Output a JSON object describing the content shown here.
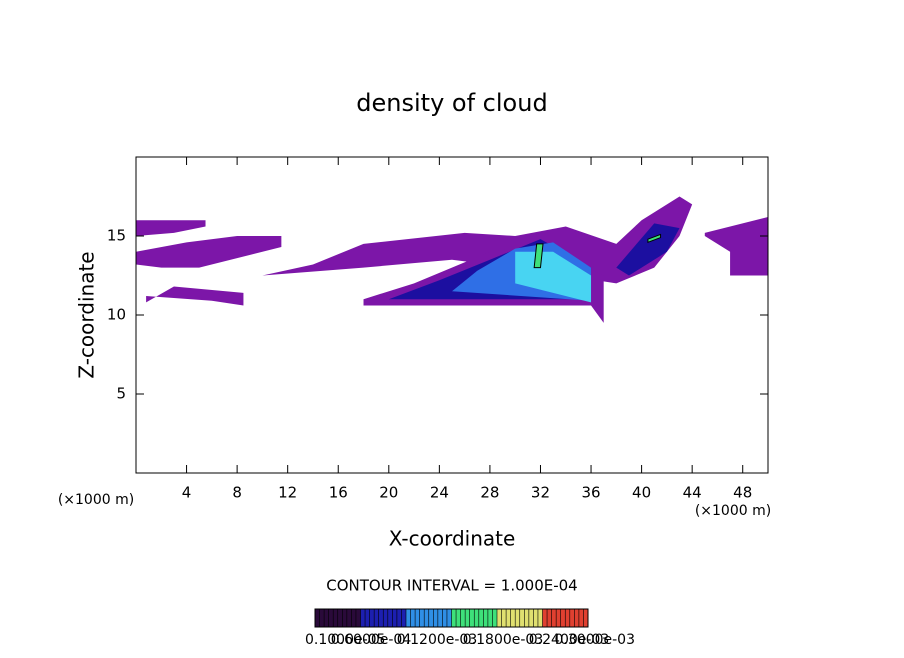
{
  "chart_data": {
    "type": "contour",
    "title": "density of cloud",
    "x_label": "X-coordinate",
    "y_label": "Z-coordinate",
    "x_unit": "(×1000 m)",
    "y_unit": "(×1000 m)",
    "note": "CONTOUR INTERVAL = 1.000E-04",
    "xlim": [
      0,
      50
    ],
    "ylim": [
      0,
      20
    ],
    "xticks": [
      4,
      8,
      12,
      16,
      20,
      24,
      28,
      32,
      36,
      40,
      44,
      48
    ],
    "yticks": [
      5,
      10,
      15
    ],
    "level_colors": [
      "#7c16a8",
      "#1c0fa0",
      "#2f6fe6",
      "#48d4f2",
      "#3ee07a"
    ],
    "colorbar_labels": [
      "0.1000e-05",
      "0.6000e-04",
      "0.1200e-03",
      "0.1800e-03",
      "0.2400e-03",
      "0.3000e-03"
    ],
    "colorbar_colors": [
      "#2a0a3a",
      "#1c1fb0",
      "#2f8fe6",
      "#3ee07a",
      "#e0e070",
      "#e04030"
    ],
    "regions": [
      {
        "level": 0,
        "x": [
          0,
          0,
          5.5,
          5.5,
          3,
          0
        ],
        "z": [
          15,
          16,
          16,
          15.6,
          15.2,
          15
        ]
      },
      {
        "level": 0,
        "x": [
          0,
          0,
          4,
          8,
          11.5,
          11.5,
          8,
          5,
          2
        ],
        "z": [
          13.2,
          14,
          14.6,
          15,
          15,
          14.3,
          13.6,
          13,
          13
        ]
      },
      {
        "level": 0,
        "x": [
          0.8,
          3,
          8.5,
          8.5,
          6,
          0.8
        ],
        "z": [
          10.8,
          11.8,
          11.4,
          10.6,
          10.9,
          11.2
        ]
      },
      {
        "level": 0,
        "x": [
          10,
          14,
          18,
          26,
          30,
          34,
          38,
          40,
          43,
          44,
          43,
          41,
          38,
          30,
          25,
          18
        ],
        "z": [
          12.5,
          13.2,
          14.5,
          15.2,
          15,
          15.6,
          14.5,
          16,
          17.5,
          17,
          15,
          13,
          12,
          13,
          13.5,
          13
        ]
      },
      {
        "level": 0,
        "x": [
          18,
          36,
          37,
          37,
          32,
          28,
          22,
          18
        ],
        "z": [
          10.6,
          10.6,
          9.5,
          12.5,
          14.5,
          14,
          12,
          11
        ]
      },
      {
        "level": 0,
        "x": [
          45,
          50,
          50,
          47,
          47,
          45
        ],
        "z": [
          15.2,
          16.2,
          12.5,
          12.5,
          14,
          15
        ]
      },
      {
        "level": 1,
        "x": [
          20,
          36,
          36,
          32,
          28,
          24
        ],
        "z": [
          11,
          11,
          13,
          14.8,
          13.5,
          12.2
        ]
      },
      {
        "level": 1,
        "x": [
          38,
          41,
          43,
          42,
          39
        ],
        "z": [
          13,
          15.8,
          15.5,
          14,
          12.5
        ]
      },
      {
        "level": 2,
        "x": [
          25,
          36,
          36,
          33,
          30,
          27
        ],
        "z": [
          11.5,
          10.9,
          13,
          14.6,
          14.2,
          12.8
        ]
      },
      {
        "level": 3,
        "x": [
          30,
          36,
          36,
          33,
          30
        ],
        "z": [
          12,
          10.8,
          12.5,
          14,
          14
        ]
      },
      {
        "level": 4,
        "x": [
          31.5,
          32,
          32.2,
          31.7
        ],
        "z": [
          13,
          13,
          14.5,
          14.5
        ]
      },
      {
        "level": 4,
        "x": [
          40.5,
          41.5,
          41.5,
          40.5
        ],
        "z": [
          14.6,
          14.9,
          15.1,
          14.8
        ]
      }
    ]
  }
}
